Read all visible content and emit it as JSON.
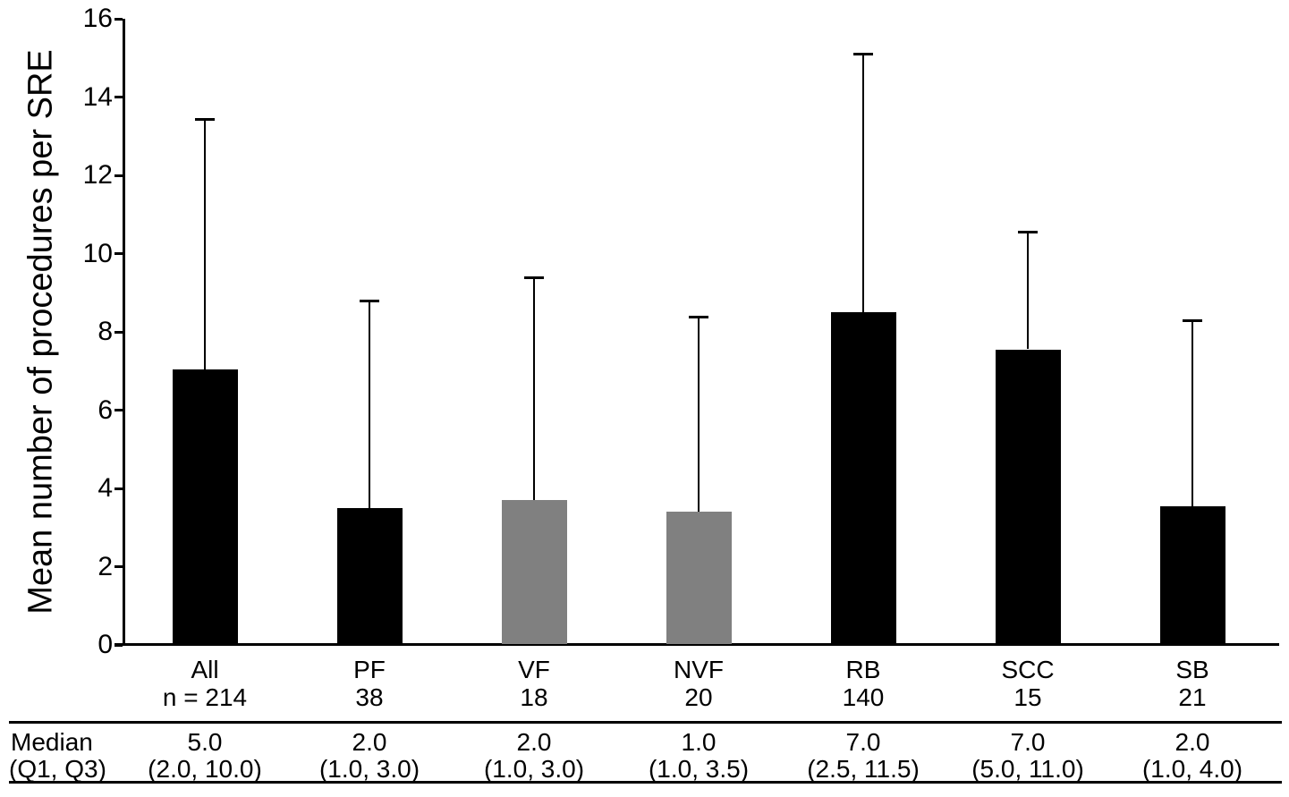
{
  "chart_data": {
    "type": "bar",
    "title": "",
    "ylabel": "Mean number of procedures per SRE",
    "xlabel": "",
    "ylim": [
      0,
      16
    ],
    "ytick_interval": 2,
    "yticks": [
      "0",
      "2",
      "4",
      "6",
      "8",
      "10",
      "12",
      "14",
      "16"
    ],
    "grid": false,
    "legend": "none",
    "error_bars": "upper only, capped",
    "categories": [
      "All",
      "PF",
      "VF",
      "NVF",
      "RB",
      "SCC",
      "SB"
    ],
    "n_labels": [
      "n = 214",
      "38",
      "18",
      "20",
      "140",
      "15",
      "21"
    ],
    "values": [
      7.05,
      3.5,
      3.7,
      3.4,
      8.5,
      7.55,
      3.55
    ],
    "upper_whisker": [
      13.45,
      8.8,
      9.4,
      8.4,
      15.1,
      10.55,
      8.3
    ],
    "bar_colors": [
      "#000000",
      "#000000",
      "#808080",
      "#808080",
      "#000000",
      "#000000",
      "#000000"
    ],
    "table": {
      "row_labels": [
        "Median",
        "(Q1, Q3)"
      ],
      "median": [
        "5.0",
        "2.0",
        "2.0",
        "1.0",
        "7.0",
        "7.0",
        "2.0"
      ],
      "q1_q3": [
        "(2.0, 10.0)",
        "(1.0, 3.0)",
        "(1.0, 3.0)",
        "(1.0, 3.5)",
        "(2.5, 11.5)",
        "(5.0, 11.0)",
        "(1.0, 4.0)"
      ]
    }
  }
}
